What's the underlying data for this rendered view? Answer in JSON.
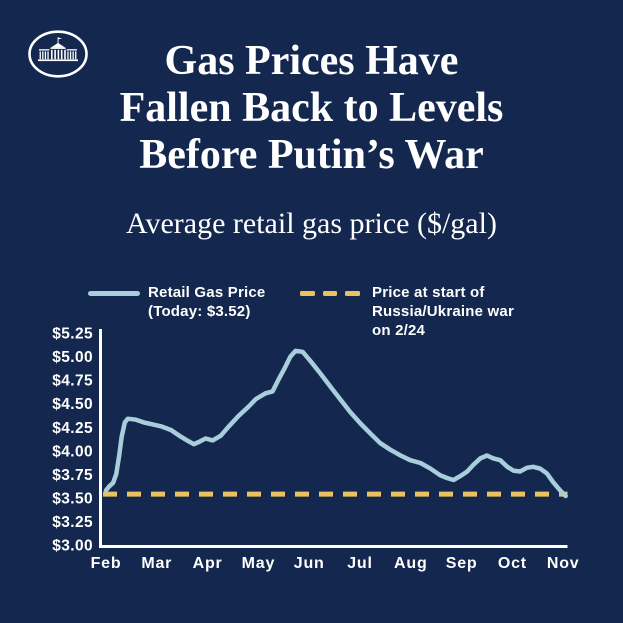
{
  "theme": {
    "background_navy": "#13274F",
    "text_white": "#FFFFFF",
    "retail_line_blue": "#A9CEDB",
    "war_line_gold": "#E9C25F"
  },
  "header": {
    "logo": "white-house-logo",
    "title_lines": [
      "Gas Prices Have",
      "Fallen Back to Levels",
      "Before Putin’s War"
    ],
    "subtitle": "Average retail gas price ($/gal)"
  },
  "legend": {
    "retail": {
      "lines": [
        "Retail Gas Price",
        "(Today: $3.52)"
      ],
      "swatch": "solid-line",
      "color": "#A9CEDB"
    },
    "war": {
      "lines": [
        "Price at start of",
        "Russia/Ukraine war",
        "on 2/24"
      ],
      "swatch": "dashed-line",
      "color": "#E9C25F"
    }
  },
  "chart_data": {
    "type": "line",
    "title": "Average retail gas price ($/gal)",
    "xlabel": "",
    "ylabel": "",
    "x_tick_labels": [
      "Feb",
      "Mar",
      "Apr",
      "May",
      "Jun",
      "Jul",
      "Aug",
      "Sep",
      "Oct",
      "Nov"
    ],
    "y_tick_values": [
      3.0,
      3.25,
      3.5,
      3.75,
      4.0,
      4.25,
      4.5,
      4.75,
      5.0,
      5.25
    ],
    "y_tick_labels": [
      "$3.00",
      "$3.25",
      "$3.50",
      "$3.75",
      "$4.00",
      "$4.25",
      "$4.50",
      "$4.75",
      "$5.00",
      "$5.25"
    ],
    "ylim": [
      3.0,
      5.25
    ],
    "xlim_months": [
      0,
      9.1
    ],
    "grid": false,
    "legend_position": "top",
    "series": [
      {
        "name": "Retail Gas Price",
        "today_value": 3.52,
        "color": "#A9CEDB",
        "points": [
          [
            0.0,
            3.58
          ],
          [
            0.06,
            3.62
          ],
          [
            0.14,
            3.66
          ],
          [
            0.2,
            3.75
          ],
          [
            0.26,
            3.95
          ],
          [
            0.31,
            4.15
          ],
          [
            0.37,
            4.3
          ],
          [
            0.43,
            4.34
          ],
          [
            0.59,
            4.33
          ],
          [
            0.75,
            4.3
          ],
          [
            0.92,
            4.28
          ],
          [
            1.08,
            4.26
          ],
          [
            1.28,
            4.22
          ],
          [
            1.47,
            4.15
          ],
          [
            1.63,
            4.1
          ],
          [
            1.73,
            4.07
          ],
          [
            1.85,
            4.1
          ],
          [
            1.96,
            4.13
          ],
          [
            2.1,
            4.11
          ],
          [
            2.26,
            4.16
          ],
          [
            2.42,
            4.26
          ],
          [
            2.61,
            4.37
          ],
          [
            2.81,
            4.47
          ],
          [
            2.95,
            4.55
          ],
          [
            3.14,
            4.61
          ],
          [
            3.28,
            4.63
          ],
          [
            3.4,
            4.76
          ],
          [
            3.52,
            4.88
          ],
          [
            3.63,
            5.0
          ],
          [
            3.73,
            5.06
          ],
          [
            3.87,
            5.05
          ],
          [
            4.03,
            4.95
          ],
          [
            4.22,
            4.82
          ],
          [
            4.42,
            4.68
          ],
          [
            4.62,
            4.54
          ],
          [
            4.81,
            4.41
          ],
          [
            5.01,
            4.29
          ],
          [
            5.21,
            4.18
          ],
          [
            5.4,
            4.08
          ],
          [
            5.6,
            4.01
          ],
          [
            5.8,
            3.95
          ],
          [
            5.99,
            3.9
          ],
          [
            6.19,
            3.87
          ],
          [
            6.39,
            3.81
          ],
          [
            6.58,
            3.74
          ],
          [
            6.72,
            3.71
          ],
          [
            6.84,
            3.69
          ],
          [
            6.97,
            3.73
          ],
          [
            7.11,
            3.78
          ],
          [
            7.23,
            3.85
          ],
          [
            7.37,
            3.92
          ],
          [
            7.5,
            3.95
          ],
          [
            7.62,
            3.92
          ],
          [
            7.76,
            3.9
          ],
          [
            7.9,
            3.83
          ],
          [
            8.02,
            3.79
          ],
          [
            8.15,
            3.78
          ],
          [
            8.29,
            3.82
          ],
          [
            8.41,
            3.83
          ],
          [
            8.55,
            3.81
          ],
          [
            8.68,
            3.76
          ],
          [
            8.8,
            3.67
          ],
          [
            8.94,
            3.58
          ],
          [
            9.05,
            3.52
          ]
        ]
      }
    ],
    "reference_line": {
      "name": "Price at start of Russia/Ukraine war on 2/24",
      "value": 3.54,
      "style": "dashed",
      "color": "#E9C25F"
    }
  }
}
